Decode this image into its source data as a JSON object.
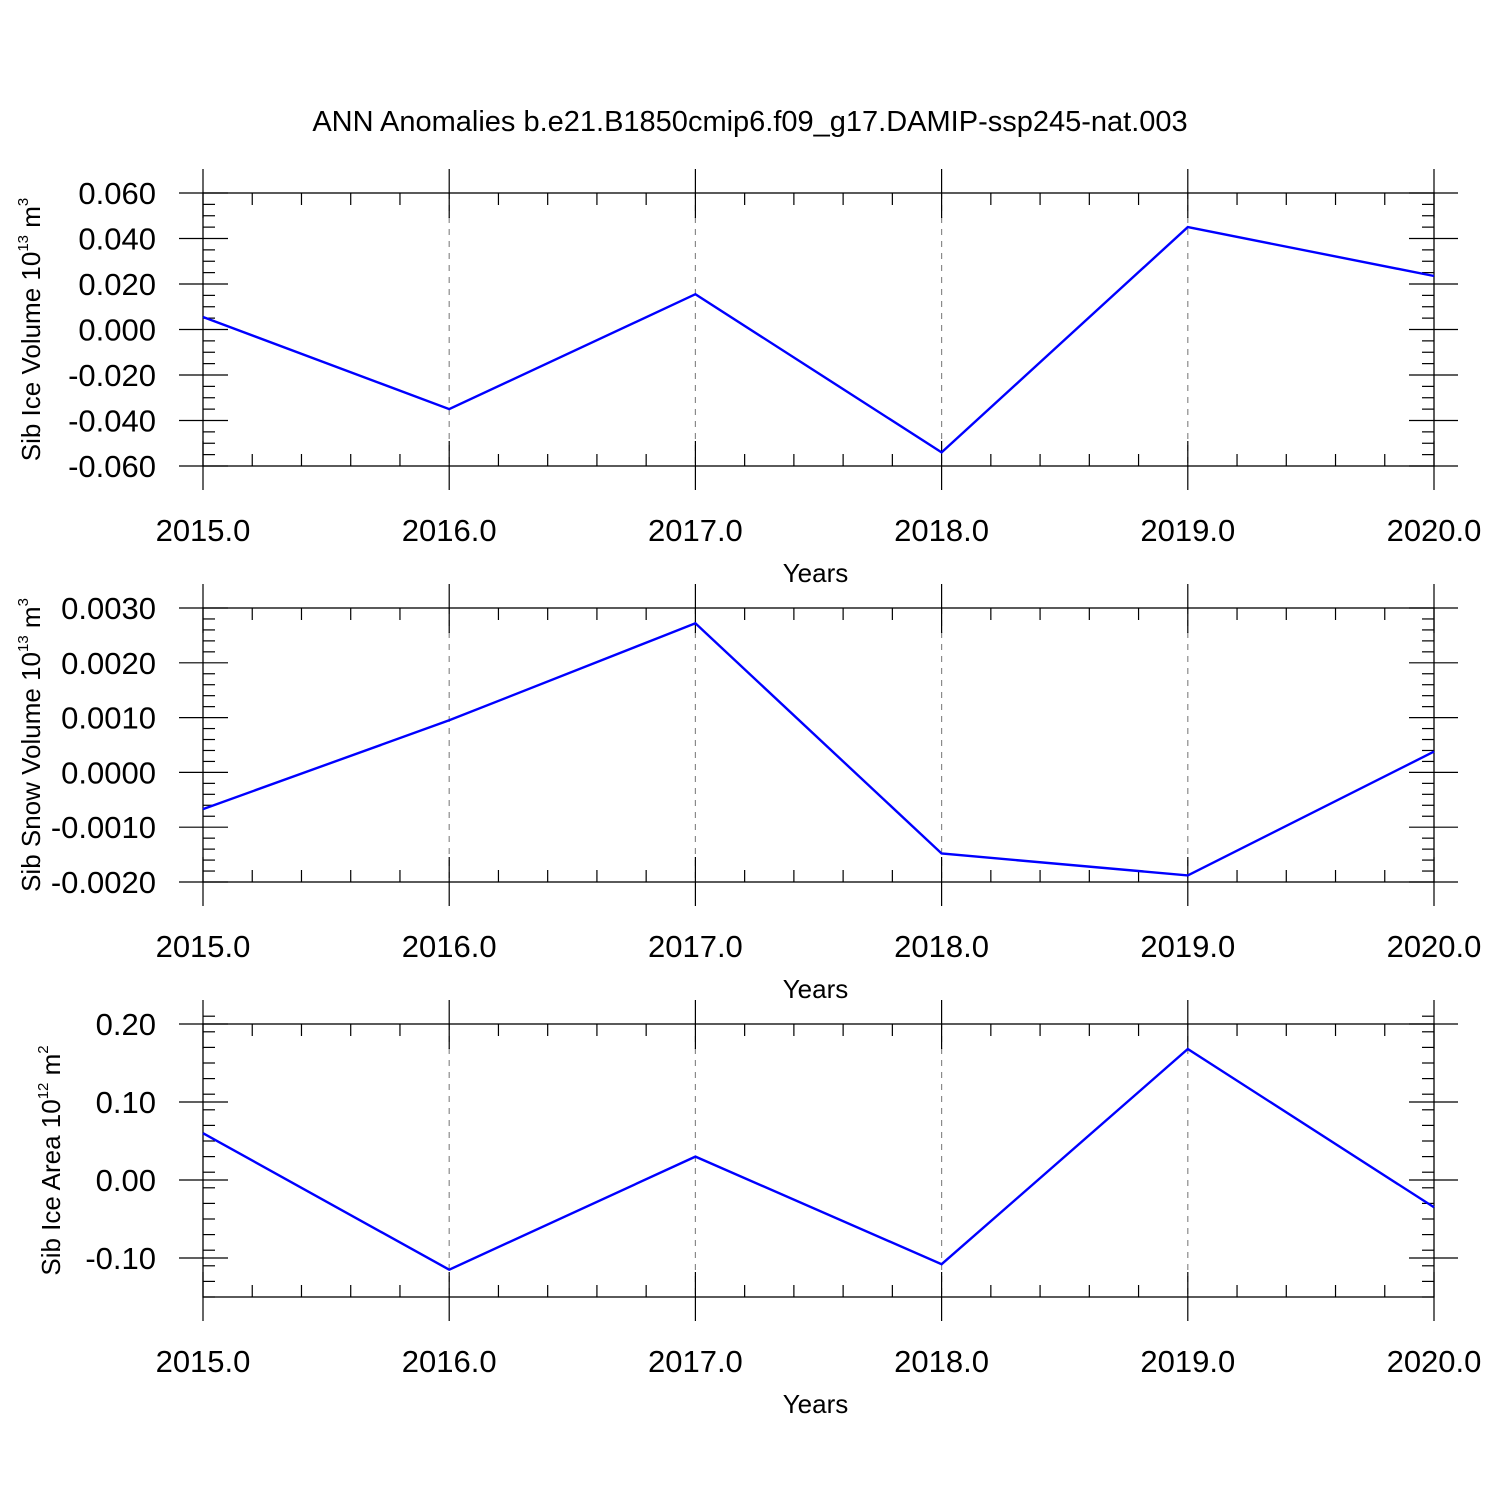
{
  "title": "ANN Anomalies b.e21.B1850cmip6.f09_g17.DAMIP-ssp245-nat.003",
  "colors": {
    "line": "#0000ff",
    "axis": "#000000",
    "grid": "#8a8a8a"
  },
  "chart_data": [
    {
      "type": "line",
      "title": "",
      "xlabel": "Years",
      "ylabel": {
        "prefix": "Sib Ice Volume 10",
        "exp": "13",
        "unit": " m",
        "unit_exp": "3"
      },
      "x": [
        2015,
        2016,
        2017,
        2018,
        2019,
        2020
      ],
      "xlim": [
        2015,
        2020
      ],
      "x_ticks": [
        2015,
        2016,
        2017,
        2018,
        2019,
        2020
      ],
      "x_tick_labels": [
        "2015.0",
        "2016.0",
        "2017.0",
        "2018.0",
        "2019.0",
        "2020.0"
      ],
      "x_minor_step": 0.2,
      "ylim": [
        -0.06,
        0.06
      ],
      "y_ticks": [
        0.06,
        0.04,
        0.02,
        0.0,
        -0.02,
        -0.04,
        -0.06
      ],
      "y_tick_labels": [
        "0.060",
        "0.040",
        "0.020",
        "0.000",
        "-0.020",
        "-0.040",
        "-0.060"
      ],
      "y_minor_step": 0.005,
      "grid": "x-dashed",
      "series": [
        {
          "values": [
            0.0055,
            -0.035,
            0.0155,
            -0.054,
            0.045,
            0.0235
          ]
        }
      ]
    },
    {
      "type": "line",
      "title": "",
      "xlabel": "Years",
      "ylabel": {
        "prefix": "Sib Snow Volume 10",
        "exp": "13",
        "unit": " m",
        "unit_exp": "3"
      },
      "x": [
        2015,
        2016,
        2017,
        2018,
        2019,
        2020
      ],
      "xlim": [
        2015,
        2020
      ],
      "x_ticks": [
        2015,
        2016,
        2017,
        2018,
        2019,
        2020
      ],
      "x_tick_labels": [
        "2015.0",
        "2016.0",
        "2017.0",
        "2018.0",
        "2019.0",
        "2020.0"
      ],
      "x_minor_step": 0.2,
      "ylim": [
        -0.002,
        0.003
      ],
      "y_ticks": [
        0.003,
        0.002,
        0.001,
        0.0,
        -0.001,
        -0.002
      ],
      "y_tick_labels": [
        "0.0030",
        "0.0020",
        "0.0010",
        "0.0000",
        "-0.0010",
        "-0.0020"
      ],
      "y_minor_step": 0.0002,
      "grid": "x-dashed",
      "series": [
        {
          "values": [
            -0.00067,
            0.00095,
            0.00272,
            -0.00148,
            -0.00188,
            0.00038
          ]
        }
      ]
    },
    {
      "type": "line",
      "title": "",
      "xlabel": "Years",
      "ylabel": {
        "prefix": "Sib Ice Area 10",
        "exp": "12",
        "unit": " m",
        "unit_exp": "2"
      },
      "x": [
        2015,
        2016,
        2017,
        2018,
        2019,
        2020
      ],
      "xlim": [
        2015,
        2020
      ],
      "x_ticks": [
        2015,
        2016,
        2017,
        2018,
        2019,
        2020
      ],
      "x_tick_labels": [
        "2015.0",
        "2016.0",
        "2017.0",
        "2018.0",
        "2019.0",
        "2020.0"
      ],
      "x_minor_step": 0.2,
      "ylim": [
        -0.15,
        0.2
      ],
      "y_ticks": [
        0.2,
        0.1,
        0.0,
        -0.1
      ],
      "y_tick_labels": [
        "0.20",
        "0.10",
        "0.00",
        "-0.10"
      ],
      "y_minor_step": 0.02,
      "grid": "x-dashed",
      "series": [
        {
          "values": [
            0.06,
            -0.115,
            0.03,
            -0.108,
            0.168,
            -0.035
          ]
        }
      ]
    }
  ]
}
